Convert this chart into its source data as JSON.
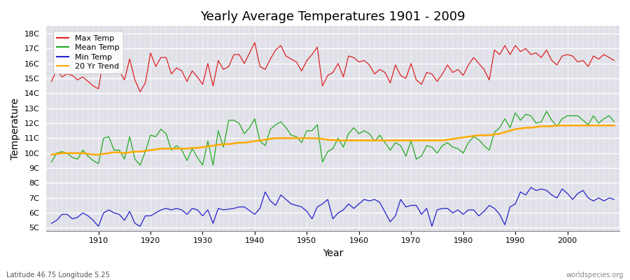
{
  "title": "Yearly Average Temperatures 1901 - 2009",
  "xlabel": "Year",
  "ylabel": "Temperature",
  "subtitle_left": "Latitude 46.75 Longitude 5.25",
  "subtitle_right": "worldspecies.org",
  "years_start": 1901,
  "years_end": 2009,
  "yticks": [
    5,
    6,
    7,
    8,
    9,
    10,
    11,
    12,
    13,
    14,
    15,
    16,
    17,
    18
  ],
  "ytick_labels": [
    "5C",
    "6C",
    "7C",
    "8C",
    "9C",
    "10C",
    "11C",
    "12C",
    "13C",
    "14C",
    "15C",
    "16C",
    "17C",
    "18C"
  ],
  "ylim": [
    4.8,
    18.5
  ],
  "xlim": [
    1900,
    2010
  ],
  "fig_bg_color": "#ffffff",
  "plot_bg_color": "#e0e0e8",
  "grid_color": "#ffffff",
  "max_temp_color": "#dd2222",
  "mean_temp_color": "#22aa22",
  "min_temp_color": "#2222cc",
  "trend_color": "#ffaa00",
  "legend_labels": [
    "Max Temp",
    "Mean Temp",
    "Min Temp",
    "20 Yr Trend"
  ],
  "max_temps": [
    14.8,
    15.6,
    15.1,
    15.3,
    15.2,
    14.9,
    15.1,
    14.8,
    14.5,
    14.3,
    16.3,
    16.2,
    15.3,
    15.5,
    14.9,
    16.3,
    14.9,
    14.1,
    14.7,
    16.7,
    15.8,
    16.4,
    16.4,
    15.3,
    15.7,
    15.5,
    14.8,
    15.5,
    15.1,
    14.6,
    16.0,
    14.5,
    16.2,
    15.6,
    15.8,
    16.6,
    16.6,
    16.0,
    16.7,
    17.4,
    15.8,
    15.6,
    16.3,
    16.9,
    17.2,
    16.5,
    16.3,
    16.1,
    15.5,
    16.2,
    16.6,
    17.1,
    14.5,
    15.2,
    15.4,
    16.0,
    15.1,
    16.5,
    16.4,
    16.1,
    16.2,
    15.9,
    15.3,
    15.6,
    15.4,
    14.7,
    15.9,
    15.2,
    15.0,
    16.0,
    14.9,
    14.6,
    15.4,
    15.3,
    14.8,
    15.3,
    15.9,
    15.4,
    15.6,
    15.2,
    15.9,
    16.4,
    16.0,
    15.6,
    14.9,
    16.9,
    16.6,
    17.2,
    16.6,
    17.2,
    16.8,
    17.0,
    16.6,
    16.7,
    16.4,
    16.9,
    16.2,
    15.9,
    16.5,
    16.6,
    16.5,
    16.1,
    16.2,
    15.8,
    16.5,
    16.3,
    16.6,
    16.4,
    16.2
  ],
  "mean_temps": [
    9.4,
    10.0,
    10.1,
    10.0,
    9.7,
    9.6,
    10.2,
    9.8,
    9.5,
    9.3,
    11.0,
    11.1,
    10.2,
    10.2,
    9.6,
    11.1,
    9.6,
    9.2,
    10.1,
    11.2,
    11.1,
    11.6,
    11.3,
    10.2,
    10.5,
    10.2,
    9.5,
    10.3,
    9.7,
    9.2,
    10.8,
    9.2,
    11.5,
    10.4,
    12.2,
    12.2,
    12.0,
    11.3,
    11.7,
    12.3,
    10.8,
    10.5,
    11.6,
    11.9,
    12.1,
    11.7,
    11.2,
    11.1,
    10.7,
    11.5,
    11.5,
    11.9,
    9.4,
    10.1,
    10.3,
    11.0,
    10.4,
    11.3,
    11.7,
    11.3,
    11.5,
    11.3,
    10.8,
    11.2,
    10.7,
    10.2,
    10.7,
    10.5,
    9.8,
    10.8,
    9.6,
    9.8,
    10.5,
    10.4,
    10.0,
    10.5,
    10.7,
    10.4,
    10.3,
    10.0,
    10.7,
    11.1,
    10.9,
    10.5,
    10.2,
    11.4,
    11.7,
    12.3,
    11.7,
    12.7,
    12.2,
    12.6,
    12.5,
    12.0,
    12.1,
    12.8,
    12.2,
    11.8,
    12.3,
    12.5,
    12.5,
    12.5,
    12.2,
    11.9,
    12.5,
    12.0,
    12.3,
    12.5,
    12.1
  ],
  "min_temps_years": [
    1901,
    1902,
    1903,
    1904,
    1905,
    1906,
    1907,
    1908,
    1909,
    1910,
    1911,
    1912,
    1913,
    1914,
    1915,
    1916,
    1917,
    1918,
    1919,
    1920,
    1921,
    1922,
    1923,
    1924,
    1925,
    1926,
    1927,
    1928,
    1929,
    1930,
    1931,
    1932,
    1933,
    1934,
    1936,
    1937,
    1938,
    1940,
    1941,
    1942,
    1943,
    1944,
    1945,
    1946,
    1947,
    1948,
    1949,
    1950,
    1951,
    1952,
    1953,
    1954,
    1955,
    1956,
    1957,
    1958,
    1959,
    1960,
    1961,
    1962,
    1963,
    1964,
    1966,
    1967,
    1968,
    1969,
    1970,
    1971,
    1972,
    1973,
    1974,
    1975,
    1976,
    1977,
    1978,
    1979,
    1980,
    1981,
    1982,
    1983,
    1984,
    1985,
    1986,
    1987,
    1988,
    1989,
    1990,
    1991,
    1992,
    1993,
    1994,
    1995,
    1996,
    1997,
    1998,
    1999,
    2000,
    2001,
    2002,
    2003,
    2004,
    2005,
    2006,
    2007,
    2008,
    2009
  ],
  "min_temps_vals": [
    5.3,
    5.5,
    5.9,
    5.9,
    5.6,
    5.7,
    6.0,
    5.8,
    5.5,
    5.1,
    6.0,
    6.2,
    6.0,
    5.9,
    5.5,
    6.1,
    5.3,
    5.1,
    5.8,
    5.8,
    6.0,
    6.2,
    6.3,
    6.2,
    6.3,
    6.2,
    5.9,
    6.3,
    6.2,
    5.8,
    6.2,
    5.3,
    6.3,
    6.2,
    6.3,
    6.4,
    6.4,
    5.9,
    6.3,
    7.4,
    6.8,
    6.5,
    7.2,
    6.9,
    6.6,
    6.5,
    6.4,
    6.1,
    5.6,
    6.4,
    6.6,
    6.9,
    5.6,
    6.0,
    6.2,
    6.6,
    6.3,
    6.6,
    6.9,
    6.8,
    6.9,
    6.7,
    5.4,
    5.8,
    6.9,
    6.4,
    6.5,
    6.5,
    5.9,
    6.3,
    5.1,
    6.2,
    6.3,
    6.3,
    6.0,
    6.2,
    5.9,
    6.2,
    6.2,
    5.8,
    6.1,
    6.5,
    6.3,
    5.9,
    5.2,
    6.4,
    6.6,
    7.4,
    7.2,
    7.7,
    7.5,
    7.6,
    7.5,
    7.2,
    7.0,
    7.6,
    7.3,
    6.9,
    7.3,
    7.5,
    7.0,
    6.8,
    7.0,
    6.8,
    7.0,
    6.9
  ],
  "trend_years": [
    1901,
    1902,
    1903,
    1904,
    1905,
    1906,
    1907,
    1908,
    1909,
    1910,
    1911,
    1912,
    1913,
    1914,
    1915,
    1916,
    1917,
    1918,
    1919,
    1920,
    1921,
    1922,
    1923,
    1924,
    1925,
    1926,
    1927,
    1928,
    1929,
    1930,
    1931,
    1932,
    1933,
    1934,
    1935,
    1936,
    1937,
    1938,
    1939,
    1940,
    1941,
    1942,
    1943,
    1944,
    1945,
    1946,
    1947,
    1948,
    1949,
    1950,
    1951,
    1952,
    1953,
    1954,
    1955,
    1956,
    1957,
    1958,
    1959,
    1960,
    1961,
    1962,
    1963,
    1964,
    1965,
    1966,
    1967,
    1968,
    1969,
    1970,
    1971,
    1972,
    1973,
    1974,
    1975,
    1976,
    1977,
    1978,
    1979,
    1980,
    1981,
    1982,
    1983,
    1984,
    1985,
    1986,
    1987,
    1988,
    1989,
    1990,
    1991,
    1992,
    1993,
    1994,
    1995,
    1996,
    1997,
    1998,
    1999,
    2000,
    2001,
    2002,
    2003,
    2004,
    2005,
    2006,
    2007,
    2008,
    2009
  ],
  "trend_vals": [
    9.9,
    9.95,
    10.0,
    10.0,
    10.0,
    10.0,
    10.0,
    9.95,
    9.9,
    9.9,
    9.95,
    10.0,
    10.05,
    10.05,
    10.0,
    10.05,
    10.1,
    10.1,
    10.15,
    10.2,
    10.25,
    10.3,
    10.3,
    10.3,
    10.3,
    10.3,
    10.3,
    10.35,
    10.35,
    10.4,
    10.45,
    10.5,
    10.55,
    10.6,
    10.6,
    10.65,
    10.7,
    10.7,
    10.75,
    10.8,
    10.85,
    10.9,
    10.95,
    11.0,
    11.0,
    11.0,
    11.0,
    11.0,
    11.0,
    11.0,
    11.0,
    10.98,
    10.95,
    10.9,
    10.88,
    10.85,
    10.85,
    10.85,
    10.85,
    10.85,
    10.85,
    10.85,
    10.85,
    10.85,
    10.85,
    10.85,
    10.85,
    10.85,
    10.85,
    10.85,
    10.85,
    10.85,
    10.85,
    10.85,
    10.85,
    10.85,
    10.9,
    10.95,
    11.0,
    11.05,
    11.1,
    11.15,
    11.2,
    11.2,
    11.2,
    11.25,
    11.3,
    11.4,
    11.5,
    11.6,
    11.65,
    11.7,
    11.7,
    11.75,
    11.8,
    11.8,
    11.8,
    11.85,
    11.85,
    11.85,
    11.85,
    11.85,
    11.85,
    11.85,
    11.85,
    11.85,
    11.85,
    11.85,
    11.85
  ]
}
